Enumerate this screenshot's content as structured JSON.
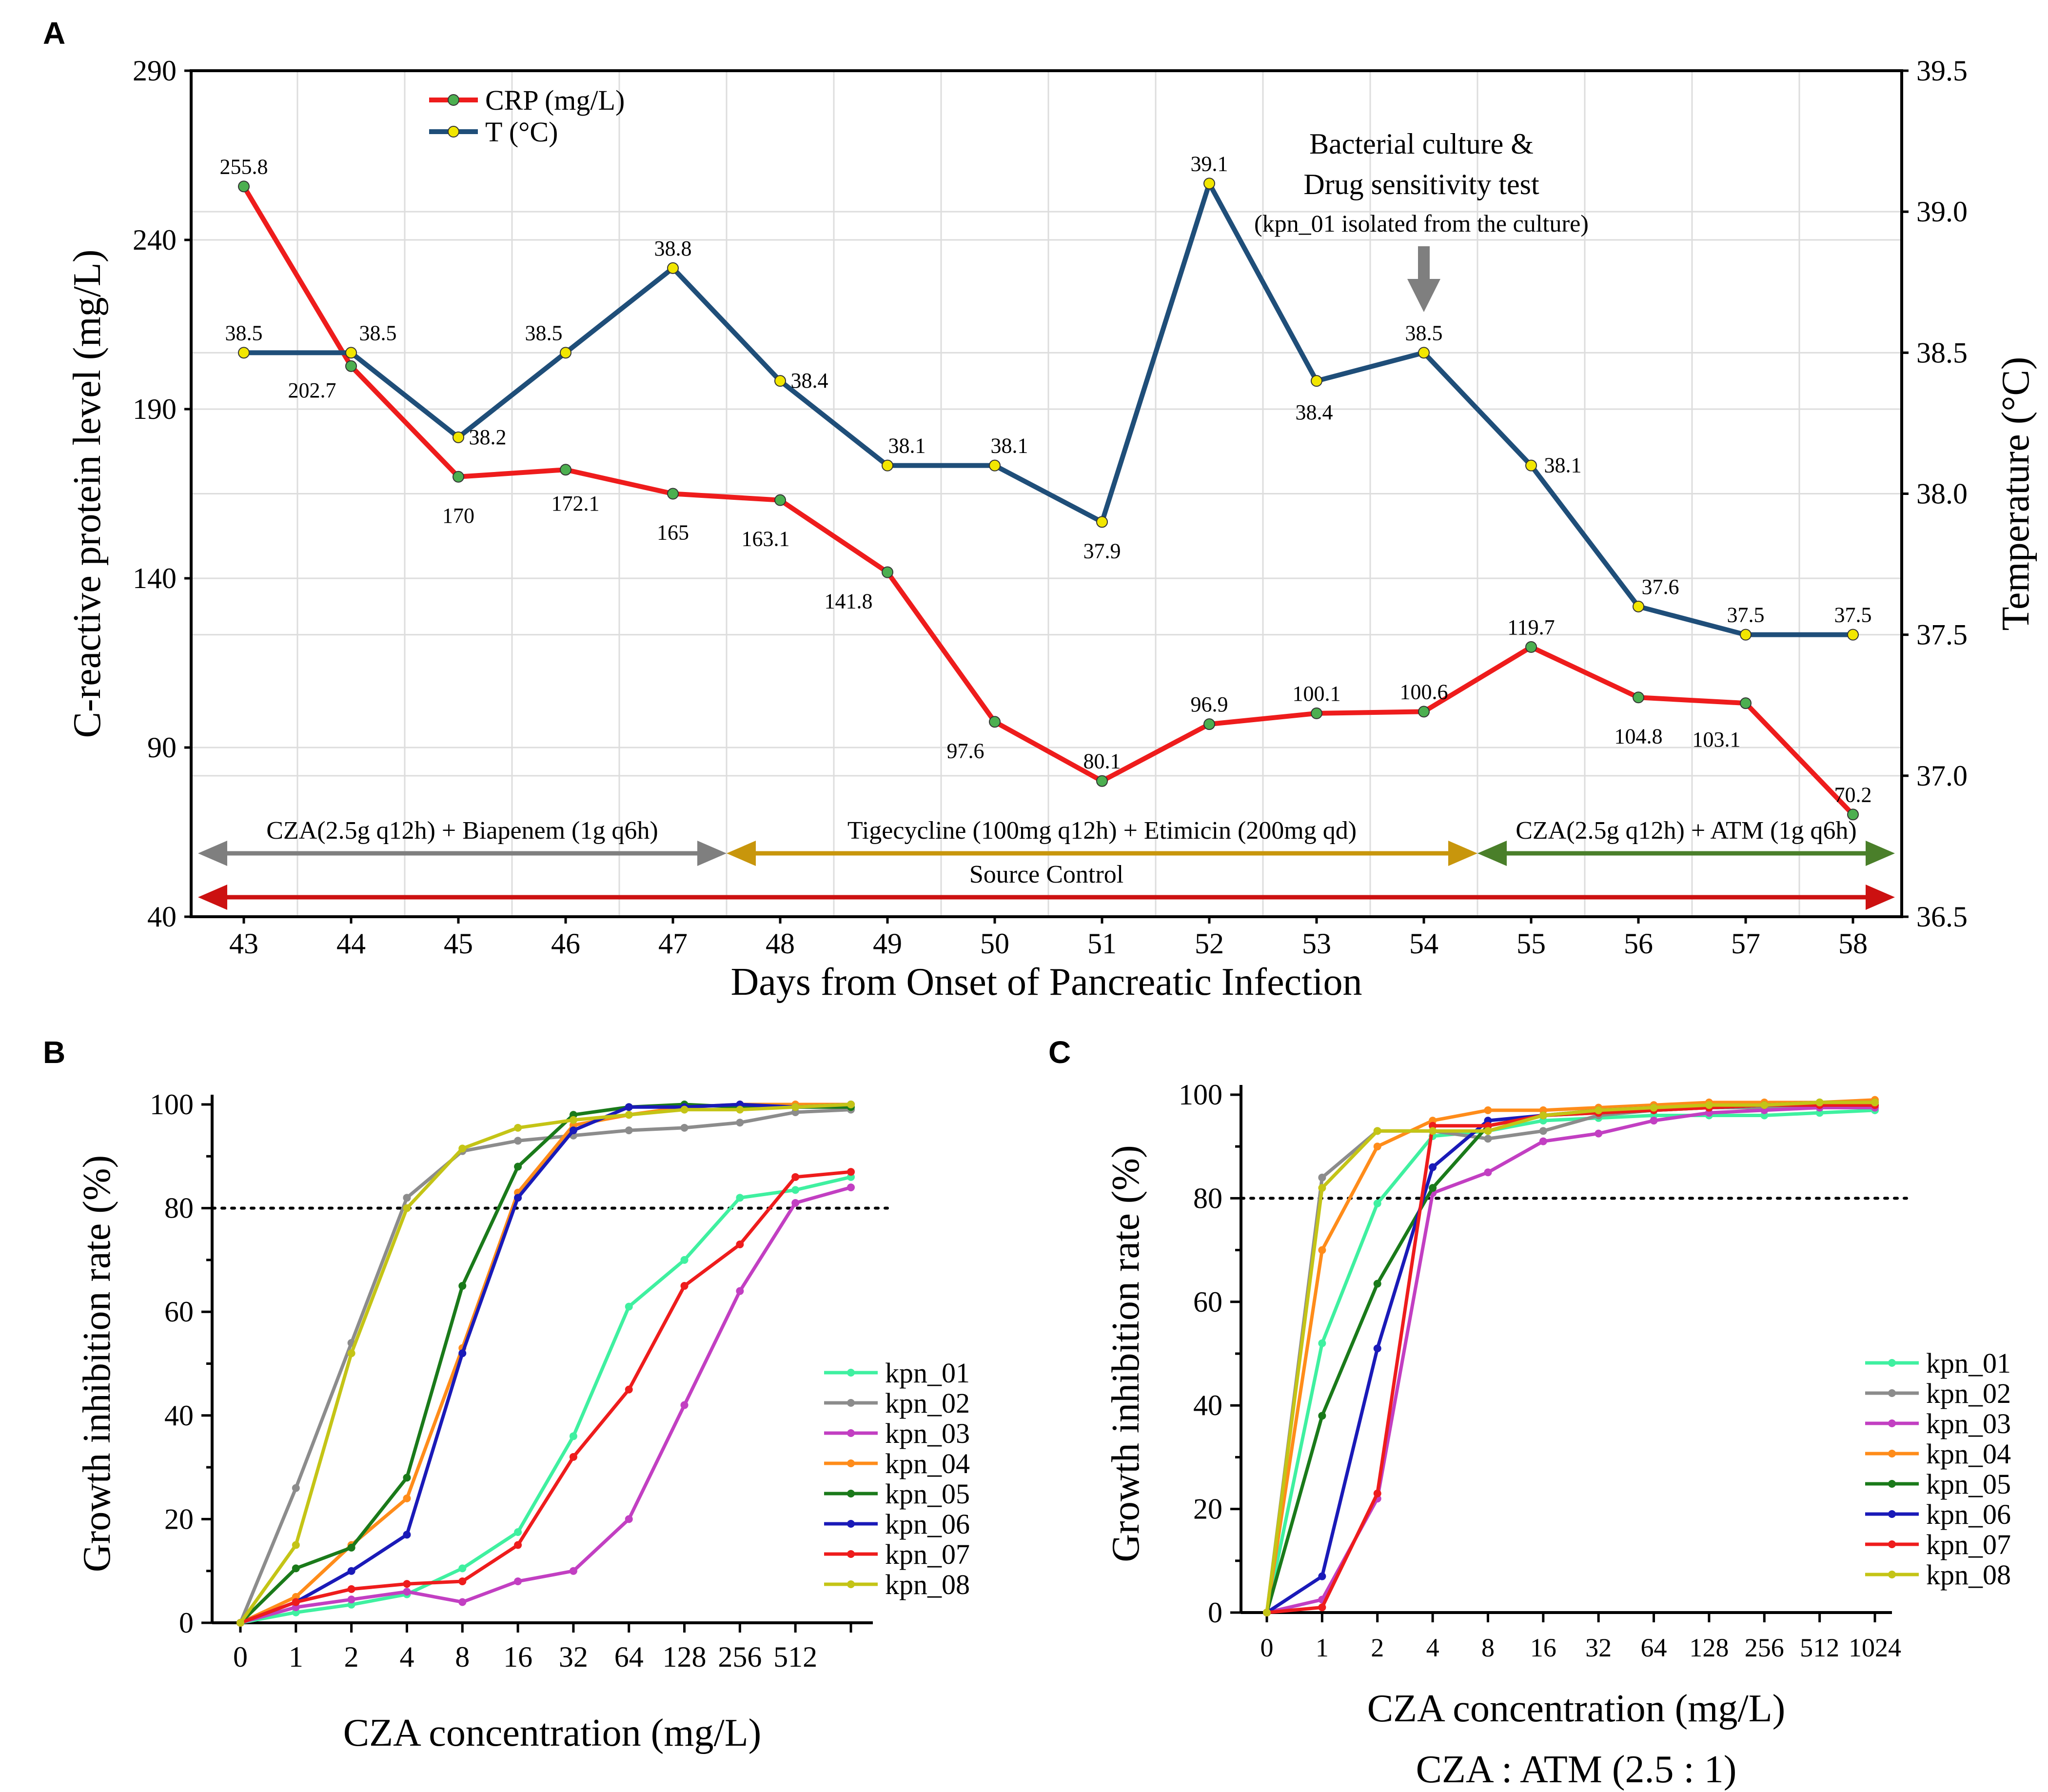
{
  "chart_data": [
    {
      "panel": "A",
      "type": "line",
      "xlabel": "Days from Onset of Pancreatic Infection",
      "ylabel_left": "C-reactive protein level (mg/L)",
      "ylabel_right": "Temperature (°C)",
      "ylim_left": [
        40,
        290
      ],
      "yticks_left": [
        "290",
        "240",
        "190",
        "140",
        "90",
        "40"
      ],
      "ylim_right": [
        36.5,
        39.5
      ],
      "yticks_right": [
        "39.5",
        "39.0",
        "38.5",
        "38.0",
        "37.5",
        "37.0",
        "36.5"
      ],
      "x": [
        43,
        44,
        45,
        46,
        47,
        48,
        49,
        50,
        51,
        52,
        53,
        54,
        55,
        56,
        57,
        58
      ],
      "series": [
        {
          "name": "CRP (mg/L)",
          "axis": "left",
          "color": "#ee1c1c",
          "marker_color": "#4caf50",
          "values": [
            255.8,
            202.7,
            170,
            172.1,
            165,
            163.1,
            141.8,
            97.6,
            80.1,
            96.9,
            100.1,
            100.6,
            119.7,
            104.8,
            103.1,
            70.2
          ],
          "labels": [
            "255.8",
            "202.7",
            "170",
            "172.1",
            "165",
            "163.1",
            "141.8",
            "97.6",
            "80.1",
            "96.9",
            "100.1",
            "100.6",
            "119.7",
            "104.8",
            "103.1",
            "70.2"
          ]
        },
        {
          "name": "T (°C)",
          "axis": "right",
          "color": "#1f4e79",
          "marker_color": "#f2e600",
          "values": [
            38.5,
            38.5,
            38.2,
            38.5,
            38.8,
            38.4,
            38.1,
            38.1,
            37.9,
            39.1,
            38.4,
            38.5,
            38.1,
            37.6,
            37.5,
            37.5
          ],
          "labels": [
            "38.5",
            "38.5",
            "38.2",
            "38.5",
            "38.8",
            "38.4",
            "38.1",
            "38.1",
            "37.9",
            "39.1",
            "38.4",
            "38.5",
            "38.1",
            "37.6",
            "37.5",
            "37.5"
          ]
        }
      ],
      "annotation": {
        "line1": "Bacterial culture &",
        "line2": "Drug sensitivity test",
        "line3": "(kpn_01 isolated from the culture)",
        "day": 54
      },
      "treatments": [
        {
          "label": "CZA(2.5g q12h) + Biapenem (1g q6h)",
          "from": 43,
          "to": 47.5,
          "color": "#7f7f7f"
        },
        {
          "label": "Tigecycline (100mg q12h) + Etimicin (200mg qd)",
          "from": 47.5,
          "to": 54.5,
          "color": "#c8960c"
        },
        {
          "label": "CZA(2.5g q12h) + ATM (1g q6h)",
          "from": 54.5,
          "to": 58.4,
          "color": "#4a7f2a"
        },
        {
          "label": "Source Control",
          "from": 43,
          "to": 58.4,
          "color": "#cc1111"
        }
      ]
    },
    {
      "panel": "B",
      "type": "line",
      "xlabel": "CZA concentration (mg/L)",
      "ylabel": "Growth inhibition rate  (%)",
      "ylim": [
        0,
        100
      ],
      "yticks": [
        "0",
        "20",
        "40",
        "60",
        "80",
        "100"
      ],
      "threshold": 80,
      "categories": [
        "0",
        "1",
        "2",
        "4",
        "8",
        "16",
        "32",
        "64",
        "128",
        "256",
        "512",
        ""
      ],
      "series": [
        {
          "name": "kpn_01",
          "color": "#3ff0a0",
          "values": [
            0,
            2,
            3.5,
            5.5,
            10.5,
            17.5,
            36,
            61,
            70,
            82,
            83.5,
            86
          ]
        },
        {
          "name": "kpn_02",
          "color": "#8c8c8c",
          "values": [
            0,
            26,
            54,
            82,
            91,
            93,
            94,
            95,
            95.5,
            96.5,
            98.5,
            99
          ]
        },
        {
          "name": "kpn_03",
          "color": "#c23fc2",
          "values": [
            0,
            3,
            4.5,
            6,
            4,
            8,
            10,
            20,
            42,
            64,
            81,
            84
          ]
        },
        {
          "name": "kpn_04",
          "color": "#ff8c1a",
          "values": [
            0,
            5,
            15,
            24,
            53,
            83,
            96,
            98,
            99.5,
            100,
            100,
            100
          ]
        },
        {
          "name": "kpn_05",
          "color": "#1a7a1a",
          "values": [
            0,
            10.5,
            14.5,
            28,
            65,
            88,
            98,
            99.5,
            100,
            99.5,
            99.5,
            99.5
          ]
        },
        {
          "name": "kpn_06",
          "color": "#1a1ab8",
          "values": [
            0,
            4,
            10,
            17,
            52,
            82,
            95,
            99.5,
            99.5,
            100,
            99.5,
            100
          ]
        },
        {
          "name": "kpn_07",
          "color": "#ee1c1c",
          "values": [
            0,
            4,
            6.5,
            7.5,
            8,
            15,
            32,
            45,
            65,
            73,
            86,
            87
          ]
        },
        {
          "name": "kpn_08",
          "color": "#c4c416",
          "values": [
            0,
            15,
            52,
            80,
            91.5,
            95.5,
            97,
            98,
            99,
            99,
            99.5,
            100
          ]
        }
      ]
    },
    {
      "panel": "C",
      "type": "line",
      "xlabel": "CZA concentration (mg/L)",
      "xlabel2": "CZA : ATM (2.5 : 1)",
      "ylabel": "Growth inhibition rate  (%)",
      "ylim": [
        0,
        100
      ],
      "yticks": [
        "0",
        "20",
        "40",
        "60",
        "80",
        "100"
      ],
      "threshold": 80,
      "categories": [
        "0",
        "1",
        "2",
        "4",
        "8",
        "16",
        "32",
        "64",
        "128",
        "256",
        "512",
        "1024"
      ],
      "series": [
        {
          "name": "kpn_01",
          "color": "#3ff0a0",
          "values": [
            0,
            52,
            79,
            92,
            93,
            95,
            95.5,
            96,
            96,
            96,
            96.5,
            97
          ]
        },
        {
          "name": "kpn_02",
          "color": "#8c8c8c",
          "values": [
            0,
            84,
            93,
            93,
            91.5,
            93,
            96,
            97,
            97.5,
            97.5,
            98,
            98.5
          ]
        },
        {
          "name": "kpn_03",
          "color": "#c23fc2",
          "values": [
            0,
            2.5,
            22,
            81,
            85,
            91,
            92.5,
            95,
            96.5,
            97,
            97.5,
            97.5
          ]
        },
        {
          "name": "kpn_04",
          "color": "#ff8c1a",
          "values": [
            0,
            70,
            90,
            95,
            97,
            97,
            97.5,
            98,
            98.5,
            98.5,
            98.5,
            99
          ]
        },
        {
          "name": "kpn_05",
          "color": "#1a7a1a",
          "values": [
            0,
            38,
            63.5,
            82,
            94,
            96,
            96.5,
            97,
            97.5,
            98,
            98.5,
            98.5
          ]
        },
        {
          "name": "kpn_06",
          "color": "#1a1ab8",
          "values": [
            0,
            7,
            51,
            86,
            95,
            96,
            97,
            97.5,
            97.5,
            98,
            98,
            98
          ]
        },
        {
          "name": "kpn_07",
          "color": "#ee1c1c",
          "values": [
            0,
            1,
            23,
            94,
            94,
            96,
            96.5,
            97,
            97.5,
            98,
            98,
            98
          ]
        },
        {
          "name": "kpn_08",
          "color": "#c4c416",
          "values": [
            0,
            82,
            93,
            93,
            93,
            96,
            97,
            97.5,
            98,
            98,
            98.5,
            98.5
          ]
        }
      ]
    }
  ]
}
